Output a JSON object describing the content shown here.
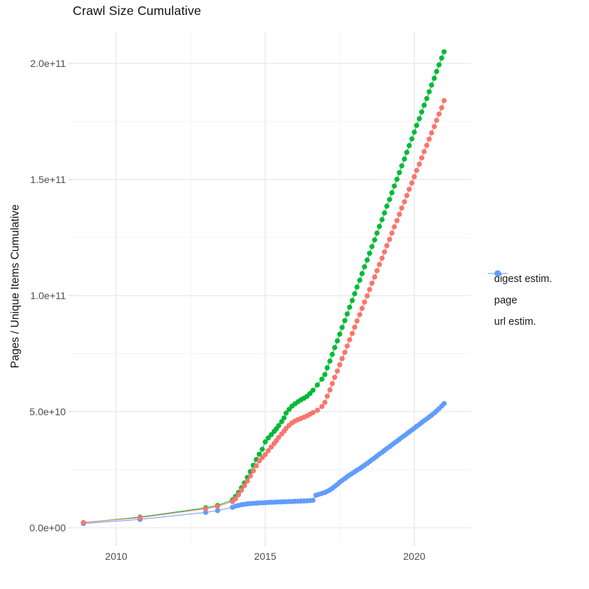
{
  "page": {
    "title": "Crawl Size Cumulative"
  },
  "colors": {
    "digest": "#F8766D",
    "page": "#00BA38",
    "url": "#619CFF",
    "grid_major": "#E3E3E3",
    "grid_minor": "#F0F0F0",
    "axis_text": "#4D4D4D",
    "tick_mark": "#CFCFCF"
  },
  "chart_data": {
    "type": "line",
    "title": "Crawl Size Cumulative",
    "xlabel": "",
    "ylabel": "Pages / Unique Items Cumulative",
    "y_unit": "1e9 (values below are billions; 205 = 2.05e+11)",
    "grid": true,
    "legend_position": "right",
    "xlim": [
      2008.5,
      2021.9
    ],
    "ylim": [
      -6.5,
      214
    ],
    "x_ticks": [
      {
        "value": 2010,
        "label": "2010"
      },
      {
        "value": 2015,
        "label": "2015"
      },
      {
        "value": 2020,
        "label": "2020"
      }
    ],
    "x_minor_ticks": [
      2012.5,
      2017.5
    ],
    "y_ticks": [
      {
        "value": 0,
        "label": "0.0e+00"
      },
      {
        "value": 50,
        "label": "5.0e+10"
      },
      {
        "value": 100,
        "label": "1.0e+11"
      },
      {
        "value": 150,
        "label": "1.5e+11"
      },
      {
        "value": 200,
        "label": "2.0e+11"
      }
    ],
    "y_minor_ticks": [
      25,
      75,
      125,
      175
    ],
    "series": [
      {
        "name": "digest estim.",
        "color": "#F8766D",
        "points": [
          [
            2008.9,
            2.2
          ],
          [
            2010.8,
            4.4
          ],
          [
            2013.0,
            8.2
          ],
          [
            2013.4,
            9.2
          ],
          [
            2013.9,
            11.3
          ],
          [
            2014.0,
            12.5
          ],
          [
            2014.1,
            14.2
          ],
          [
            2014.2,
            16.2
          ],
          [
            2014.3,
            18.1
          ],
          [
            2014.4,
            20.1
          ],
          [
            2014.5,
            22.3
          ],
          [
            2014.6,
            24.5
          ],
          [
            2014.7,
            26.7
          ],
          [
            2014.8,
            28.8
          ],
          [
            2014.9,
            30.2
          ],
          [
            2015.0,
            31.5
          ],
          [
            2015.1,
            33.2
          ],
          [
            2015.2,
            34.8
          ],
          [
            2015.3,
            36.3
          ],
          [
            2015.37,
            37.5
          ],
          [
            2015.45,
            38.9
          ],
          [
            2015.55,
            40.4
          ],
          [
            2015.63,
            41.6
          ],
          [
            2015.7,
            42.8
          ],
          [
            2015.8,
            44.1
          ],
          [
            2015.9,
            45.2
          ],
          [
            2016.0,
            46.0
          ],
          [
            2016.1,
            46.6
          ],
          [
            2016.2,
            47.1
          ],
          [
            2016.3,
            47.6
          ],
          [
            2016.4,
            48.2
          ],
          [
            2016.5,
            48.9
          ],
          [
            2016.6,
            49.6
          ],
          [
            2016.75,
            50.6
          ],
          [
            2016.9,
            52.2
          ],
          [
            2017.0,
            54.0
          ],
          [
            2017.08,
            56.7
          ],
          [
            2017.17,
            59.4
          ],
          [
            2017.25,
            62.1
          ],
          [
            2017.33,
            64.8
          ],
          [
            2017.42,
            67.5
          ],
          [
            2017.5,
            70.2
          ],
          [
            2017.58,
            72.9
          ],
          [
            2017.67,
            75.6
          ],
          [
            2017.75,
            78.3
          ],
          [
            2017.83,
            81.0
          ],
          [
            2017.92,
            83.7
          ],
          [
            2018.0,
            86.4
          ],
          [
            2018.08,
            89.1
          ],
          [
            2018.17,
            91.8
          ],
          [
            2018.25,
            94.5
          ],
          [
            2018.33,
            97.2
          ],
          [
            2018.42,
            99.9
          ],
          [
            2018.5,
            102.6
          ],
          [
            2018.58,
            105.3
          ],
          [
            2018.67,
            108.0
          ],
          [
            2018.75,
            110.7
          ],
          [
            2018.83,
            113.4
          ],
          [
            2018.92,
            116.1
          ],
          [
            2019.0,
            118.8
          ],
          [
            2019.08,
            121.5
          ],
          [
            2019.17,
            124.2
          ],
          [
            2019.25,
            126.9
          ],
          [
            2019.33,
            129.6
          ],
          [
            2019.42,
            132.3
          ],
          [
            2019.5,
            135.0
          ],
          [
            2019.58,
            137.7
          ],
          [
            2019.67,
            140.4
          ],
          [
            2019.75,
            143.1
          ],
          [
            2019.83,
            145.8
          ],
          [
            2019.92,
            148.5
          ],
          [
            2020.0,
            151.2
          ],
          [
            2020.08,
            153.9
          ],
          [
            2020.17,
            156.6
          ],
          [
            2020.25,
            159.3
          ],
          [
            2020.33,
            162.0
          ],
          [
            2020.42,
            164.7
          ],
          [
            2020.5,
            167.4
          ],
          [
            2020.58,
            170.1
          ],
          [
            2020.67,
            172.8
          ],
          [
            2020.75,
            175.5
          ],
          [
            2020.83,
            178.2
          ],
          [
            2020.92,
            180.9
          ],
          [
            2021.0,
            184.0
          ]
        ]
      },
      {
        "name": "page",
        "color": "#00BA38",
        "points": [
          [
            2008.9,
            2.2
          ],
          [
            2010.8,
            4.6
          ],
          [
            2013.0,
            8.6
          ],
          [
            2013.4,
            9.6
          ],
          [
            2013.9,
            12.0
          ],
          [
            2014.0,
            13.5
          ],
          [
            2014.1,
            15.2
          ],
          [
            2014.2,
            17.2
          ],
          [
            2014.3,
            19.3
          ],
          [
            2014.4,
            21.7
          ],
          [
            2014.5,
            24.2
          ],
          [
            2014.6,
            26.9
          ],
          [
            2014.7,
            29.4
          ],
          [
            2014.8,
            31.7
          ],
          [
            2014.9,
            33.8
          ],
          [
            2015.0,
            37.0
          ],
          [
            2015.1,
            38.7
          ],
          [
            2015.2,
            40.1
          ],
          [
            2015.3,
            41.5
          ],
          [
            2015.37,
            42.6
          ],
          [
            2015.45,
            44.0
          ],
          [
            2015.55,
            45.7
          ],
          [
            2015.63,
            47.3
          ],
          [
            2015.7,
            49.4
          ],
          [
            2015.8,
            51.0
          ],
          [
            2015.9,
            52.4
          ],
          [
            2016.0,
            53.4
          ],
          [
            2016.1,
            54.3
          ],
          [
            2016.2,
            55.1
          ],
          [
            2016.3,
            55.8
          ],
          [
            2016.4,
            56.6
          ],
          [
            2016.5,
            57.8
          ],
          [
            2016.6,
            59.2
          ],
          [
            2016.75,
            61.5
          ],
          [
            2016.9,
            64.0
          ],
          [
            2017.0,
            66.0
          ],
          [
            2017.08,
            68.9
          ],
          [
            2017.17,
            71.8
          ],
          [
            2017.25,
            74.7
          ],
          [
            2017.33,
            77.6
          ],
          [
            2017.42,
            80.5
          ],
          [
            2017.5,
            83.4
          ],
          [
            2017.58,
            86.3
          ],
          [
            2017.67,
            89.2
          ],
          [
            2017.75,
            92.1
          ],
          [
            2017.83,
            95.0
          ],
          [
            2017.92,
            97.9
          ],
          [
            2018.0,
            100.8
          ],
          [
            2018.08,
            103.7
          ],
          [
            2018.17,
            106.6
          ],
          [
            2018.25,
            109.5
          ],
          [
            2018.33,
            112.4
          ],
          [
            2018.42,
            115.3
          ],
          [
            2018.5,
            118.2
          ],
          [
            2018.58,
            121.1
          ],
          [
            2018.67,
            124.0
          ],
          [
            2018.75,
            126.9
          ],
          [
            2018.83,
            129.8
          ],
          [
            2018.92,
            132.7
          ],
          [
            2019.0,
            135.6
          ],
          [
            2019.08,
            138.5
          ],
          [
            2019.17,
            141.4
          ],
          [
            2019.25,
            144.3
          ],
          [
            2019.33,
            147.2
          ],
          [
            2019.42,
            150.1
          ],
          [
            2019.5,
            153.0
          ],
          [
            2019.58,
            155.9
          ],
          [
            2019.67,
            158.8
          ],
          [
            2019.75,
            161.7
          ],
          [
            2019.83,
            164.6
          ],
          [
            2019.92,
            167.5
          ],
          [
            2020.0,
            170.4
          ],
          [
            2020.08,
            173.3
          ],
          [
            2020.17,
            176.2
          ],
          [
            2020.25,
            179.1
          ],
          [
            2020.33,
            182.0
          ],
          [
            2020.42,
            184.9
          ],
          [
            2020.5,
            187.8
          ],
          [
            2020.58,
            190.7
          ],
          [
            2020.67,
            193.6
          ],
          [
            2020.75,
            196.5
          ],
          [
            2020.83,
            199.4
          ],
          [
            2020.92,
            202.3
          ],
          [
            2021.0,
            205.0
          ]
        ]
      },
      {
        "name": "url estim.",
        "color": "#619CFF",
        "points": [
          [
            2008.9,
            1.8
          ],
          [
            2010.8,
            3.6
          ],
          [
            2013.0,
            6.6
          ],
          [
            2013.4,
            7.4
          ],
          [
            2013.9,
            8.8
          ],
          [
            2014.0,
            9.3
          ],
          [
            2014.1,
            9.6
          ],
          [
            2014.2,
            9.9
          ],
          [
            2014.3,
            10.1
          ],
          [
            2014.4,
            10.3
          ],
          [
            2014.5,
            10.4
          ],
          [
            2014.6,
            10.5
          ],
          [
            2014.7,
            10.6
          ],
          [
            2014.8,
            10.7
          ],
          [
            2014.9,
            10.75
          ],
          [
            2015.0,
            10.8
          ],
          [
            2015.1,
            10.9
          ],
          [
            2015.2,
            11.0
          ],
          [
            2015.3,
            11.0
          ],
          [
            2015.4,
            11.1
          ],
          [
            2015.5,
            11.1
          ],
          [
            2015.6,
            11.2
          ],
          [
            2015.7,
            11.2
          ],
          [
            2015.8,
            11.3
          ],
          [
            2015.9,
            11.3
          ],
          [
            2016.0,
            11.4
          ],
          [
            2016.1,
            11.4
          ],
          [
            2016.2,
            11.5
          ],
          [
            2016.3,
            11.5
          ],
          [
            2016.4,
            11.6
          ],
          [
            2016.5,
            11.7
          ],
          [
            2016.6,
            11.8
          ],
          [
            2016.7,
            14.0
          ],
          [
            2016.8,
            14.4
          ],
          [
            2016.9,
            14.8
          ],
          [
            2017.0,
            15.2
          ],
          [
            2017.08,
            15.7
          ],
          [
            2017.17,
            16.3
          ],
          [
            2017.25,
            17.0
          ],
          [
            2017.33,
            17.8
          ],
          [
            2017.42,
            18.7
          ],
          [
            2017.5,
            19.6
          ],
          [
            2017.58,
            20.4
          ],
          [
            2017.67,
            21.2
          ],
          [
            2017.75,
            22.0
          ],
          [
            2017.83,
            22.7
          ],
          [
            2017.92,
            23.4
          ],
          [
            2018.0,
            24.1
          ],
          [
            2018.08,
            24.8
          ],
          [
            2018.17,
            25.5
          ],
          [
            2018.25,
            26.2
          ],
          [
            2018.33,
            26.9
          ],
          [
            2018.42,
            27.7
          ],
          [
            2018.5,
            28.5
          ],
          [
            2018.58,
            29.3
          ],
          [
            2018.67,
            30.1
          ],
          [
            2018.75,
            30.9
          ],
          [
            2018.83,
            31.7
          ],
          [
            2018.92,
            32.5
          ],
          [
            2019.0,
            33.3
          ],
          [
            2019.08,
            34.1
          ],
          [
            2019.17,
            34.9
          ],
          [
            2019.25,
            35.7
          ],
          [
            2019.33,
            36.5
          ],
          [
            2019.42,
            37.3
          ],
          [
            2019.5,
            38.1
          ],
          [
            2019.58,
            38.9
          ],
          [
            2019.67,
            39.7
          ],
          [
            2019.75,
            40.5
          ],
          [
            2019.83,
            41.3
          ],
          [
            2019.92,
            42.1
          ],
          [
            2020.0,
            42.9
          ],
          [
            2020.08,
            43.7
          ],
          [
            2020.17,
            44.5
          ],
          [
            2020.25,
            45.3
          ],
          [
            2020.33,
            46.1
          ],
          [
            2020.42,
            46.9
          ],
          [
            2020.5,
            47.7
          ],
          [
            2020.58,
            48.5
          ],
          [
            2020.67,
            49.4
          ],
          [
            2020.75,
            50.3
          ],
          [
            2020.83,
            51.3
          ],
          [
            2020.92,
            52.4
          ],
          [
            2021.0,
            53.5
          ]
        ]
      }
    ]
  }
}
